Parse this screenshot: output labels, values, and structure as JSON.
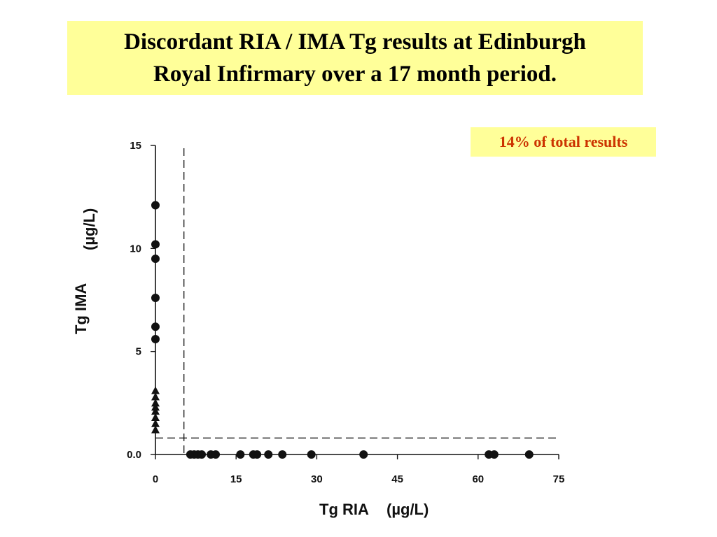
{
  "slide": {
    "title_line1": "Discordant RIA / IMA Tg results at Edinburgh",
    "title_line2": "Royal Infirmary over a 17 month period.",
    "note": "14% of total results",
    "colors": {
      "highlight_bg": "#ffff99",
      "note_text": "#cc3300",
      "ink": "#111111"
    }
  },
  "chart_data": {
    "type": "scatter",
    "title": "",
    "xlabel": "Tg RIA",
    "xunit": "(µg/L)",
    "ylabel": "Tg IMA",
    "yunit": "(µg/L)",
    "xlim": [
      0,
      75
    ],
    "ylim": [
      0,
      15
    ],
    "x_ticks": [
      0,
      15,
      30,
      45,
      60,
      75
    ],
    "x_tick_labels": [
      "0",
      "15",
      "30",
      "45",
      "60",
      "75"
    ],
    "y_ticks": [
      0,
      5,
      10,
      15
    ],
    "y_tick_labels": [
      "0.0",
      "5",
      "10",
      "15"
    ],
    "grid": false,
    "threshold_lines": [
      {
        "axis": "x",
        "value": 5.3,
        "style": "dashed"
      },
      {
        "axis": "y",
        "value": 0.8,
        "style": "dashed"
      }
    ],
    "series": [
      {
        "marker": "circle",
        "points": [
          {
            "x": 0,
            "y": 12.1
          },
          {
            "x": 0,
            "y": 10.2
          },
          {
            "x": 0,
            "y": 9.5
          },
          {
            "x": 0,
            "y": 7.6
          },
          {
            "x": 0,
            "y": 6.2
          },
          {
            "x": 0,
            "y": 5.6
          },
          {
            "x": 6.5,
            "y": 0
          },
          {
            "x": 7.2,
            "y": 0
          },
          {
            "x": 7.9,
            "y": 0
          },
          {
            "x": 8.6,
            "y": 0
          },
          {
            "x": 10.3,
            "y": 0
          },
          {
            "x": 11.2,
            "y": 0
          },
          {
            "x": 15.8,
            "y": 0
          },
          {
            "x": 18.2,
            "y": 0
          },
          {
            "x": 18.9,
            "y": 0
          },
          {
            "x": 21.0,
            "y": 0
          },
          {
            "x": 23.6,
            "y": 0
          },
          {
            "x": 29.0,
            "y": 0
          },
          {
            "x": 38.7,
            "y": 0
          },
          {
            "x": 62.0,
            "y": 0
          },
          {
            "x": 63.0,
            "y": 0
          },
          {
            "x": 69.5,
            "y": 0
          }
        ]
      },
      {
        "marker": "triangle",
        "points": [
          {
            "x": 0,
            "y": 3.1
          },
          {
            "x": 0,
            "y": 2.8
          },
          {
            "x": 0,
            "y": 2.5
          },
          {
            "x": 0,
            "y": 2.3
          },
          {
            "x": 0,
            "y": 2.1
          },
          {
            "x": 0,
            "y": 1.8
          },
          {
            "x": 0,
            "y": 1.5
          },
          {
            "x": 0,
            "y": 1.2
          }
        ]
      }
    ]
  }
}
